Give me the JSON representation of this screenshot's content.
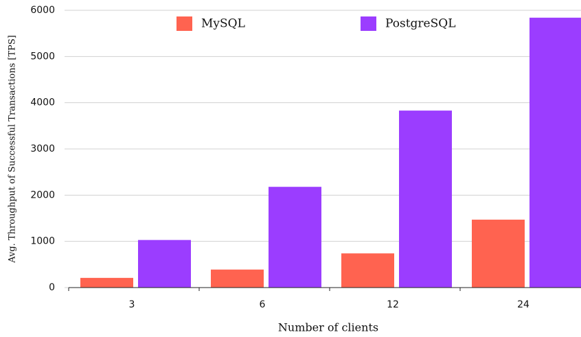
{
  "chart_data": {
    "type": "bar",
    "x_label": "Number of clients",
    "y_label": "Avg. Throughput of Successful Transactions [TPS]",
    "categories": [
      "3",
      "6",
      "12",
      "24"
    ],
    "series": [
      {
        "name": "MySQL",
        "color": "#ff6350",
        "values": [
          210,
          390,
          740,
          1470
        ]
      },
      {
        "name": "PostgreSQL",
        "color": "#9b3dff",
        "values": [
          1030,
          2180,
          3830,
          5840
        ]
      }
    ],
    "ylim": [
      0,
      6000
    ],
    "yticks": [
      0,
      1000,
      2000,
      3000,
      4000,
      5000,
      6000
    ],
    "grid": true,
    "legend": "top"
  }
}
